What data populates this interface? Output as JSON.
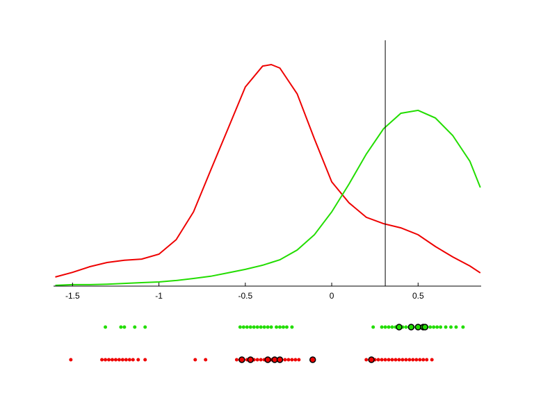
{
  "chart_data": {
    "type": "density",
    "xlim": [
      -1.61,
      0.865
    ],
    "ylim": [
      0,
      1
    ],
    "xticks": [
      -1.5,
      -1,
      -0.5,
      0,
      0.5
    ],
    "x": [
      -1.6,
      -1.5,
      -1.4,
      -1.3,
      -1.2,
      -1.1,
      -1.0,
      -0.9,
      -0.8,
      -0.7,
      -0.6,
      -0.5,
      -0.4,
      -0.35,
      -0.3,
      -0.2,
      -0.1,
      0,
      0.1,
      0.2,
      0.3,
      0.4,
      0.5,
      0.6,
      0.7,
      0.8,
      0.86
    ],
    "series": [
      {
        "color": "#ee0000",
        "values": [
          0.037,
          0.056,
          0.079,
          0.096,
          0.105,
          0.11,
          0.13,
          0.189,
          0.302,
          0.472,
          0.641,
          0.81,
          0.895,
          0.901,
          0.887,
          0.782,
          0.599,
          0.424,
          0.339,
          0.28,
          0.254,
          0.237,
          0.209,
          0.161,
          0.119,
          0.082,
          0.054
        ]
      },
      {
        "color": "#22dd00",
        "values": [
          0.003,
          0.006,
          0.006,
          0.008,
          0.011,
          0.014,
          0.017,
          0.023,
          0.031,
          0.04,
          0.054,
          0.068,
          0.085,
          0.096,
          0.107,
          0.147,
          0.209,
          0.302,
          0.415,
          0.537,
          0.64,
          0.703,
          0.715,
          0.684,
          0.613,
          0.508,
          0.401
        ]
      }
    ],
    "vline": 0.31,
    "rugs": [
      {
        "color": "#22dd00",
        "values": [
          -1.31,
          -1.22,
          -1.2,
          -1.14,
          -1.08,
          -0.53,
          -0.51,
          -0.49,
          -0.47,
          -0.45,
          -0.43,
          -0.41,
          -0.39,
          -0.37,
          -0.35,
          -0.32,
          -0.3,
          -0.28,
          -0.26,
          -0.23,
          0.24,
          0.29,
          0.31,
          0.33,
          0.35,
          0.37,
          0.39,
          0.41,
          0.43,
          0.45,
          0.47,
          0.49,
          0.51,
          0.53,
          0.55,
          0.57,
          0.59,
          0.61,
          0.63,
          0.66,
          0.69,
          0.72,
          0.76
        ],
        "highlight": [
          0.39,
          0.46,
          0.5,
          0.53,
          0.54
        ]
      },
      {
        "color": "#ee0000",
        "values": [
          -1.51,
          -1.33,
          -1.31,
          -1.29,
          -1.27,
          -1.25,
          -1.23,
          -1.21,
          -1.19,
          -1.17,
          -1.15,
          -1.12,
          -1.08,
          -0.79,
          -0.73,
          -0.55,
          -0.53,
          -0.51,
          -0.49,
          -0.47,
          -0.45,
          -0.43,
          -0.41,
          -0.39,
          -0.37,
          -0.35,
          -0.33,
          -0.31,
          -0.29,
          -0.27,
          -0.25,
          -0.23,
          -0.21,
          -0.19,
          -0.11,
          0.2,
          0.22,
          0.25,
          0.27,
          0.29,
          0.31,
          0.33,
          0.35,
          0.37,
          0.39,
          0.41,
          0.43,
          0.45,
          0.47,
          0.49,
          0.51,
          0.53,
          0.55,
          0.58
        ],
        "highlight": [
          -0.52,
          -0.47,
          -0.37,
          -0.33,
          -0.3,
          -0.11,
          0.23
        ]
      }
    ]
  }
}
